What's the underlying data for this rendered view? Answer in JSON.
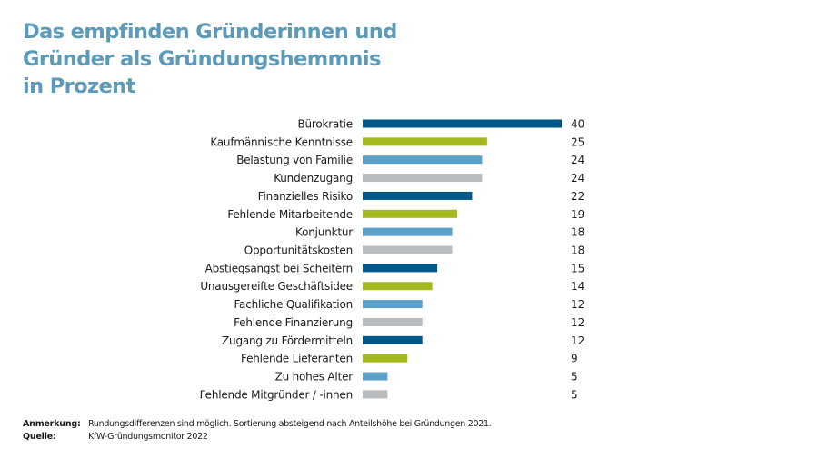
{
  "chart_data": {
    "type": "bar",
    "orientation": "horizontal",
    "title": "Das empfinden Gründerinnen und Gründer als Gründungshemmnis in Prozent",
    "title_lines": [
      "Das empfinden Gründerinnen und",
      "Gründer als Gründungshemmnis",
      "in Prozent"
    ],
    "xlabel": "",
    "ylabel": "",
    "xlim": [
      0,
      40
    ],
    "grid": false,
    "legend": "none",
    "categories": [
      "Bürokratie",
      "Kaufmännische Kenntnisse",
      "Belastung von Familie",
      "Kundenzugang",
      "Finanzielles Risiko",
      "Fehlende Mitarbeitende",
      "Konjunktur",
      "Opportunitätskosten",
      "Abstiegsangst bei Scheitern",
      "Unausgereifte Geschäftsidee",
      "Fachliche Qualifikation",
      "Fehlende Finanzierung",
      "Zugang zu Fördermitteln",
      "Fehlende Lieferanten",
      "Zu hohes Alter",
      "Fehlende Mitgründer / -innen"
    ],
    "values": [
      40,
      25,
      24,
      24,
      22,
      19,
      18,
      18,
      15,
      14,
      12,
      12,
      12,
      9,
      5,
      5
    ],
    "bar_colors": [
      "#00578a",
      "#a5b81d",
      "#5aa0c8",
      "#b9bcbf",
      "#00578a",
      "#a5b81d",
      "#5aa0c8",
      "#b9bcbf",
      "#00578a",
      "#a5b81d",
      "#5aa0c8",
      "#b9bcbf",
      "#00578a",
      "#a5b81d",
      "#5aa0c8",
      "#b9bcbf"
    ]
  },
  "footer": {
    "note_key": "Anmerkung:",
    "note_text": "Rundungsdifferenzen sind möglich. Sortierung absteigend nach Anteilshöhe bei Gründungen 2021.",
    "source_key": "Quelle:",
    "source_text": "KfW-Gründungsmonitor 2022"
  },
  "colors": {
    "title": "#5b9ab8",
    "text": "#1a1a1a"
  }
}
